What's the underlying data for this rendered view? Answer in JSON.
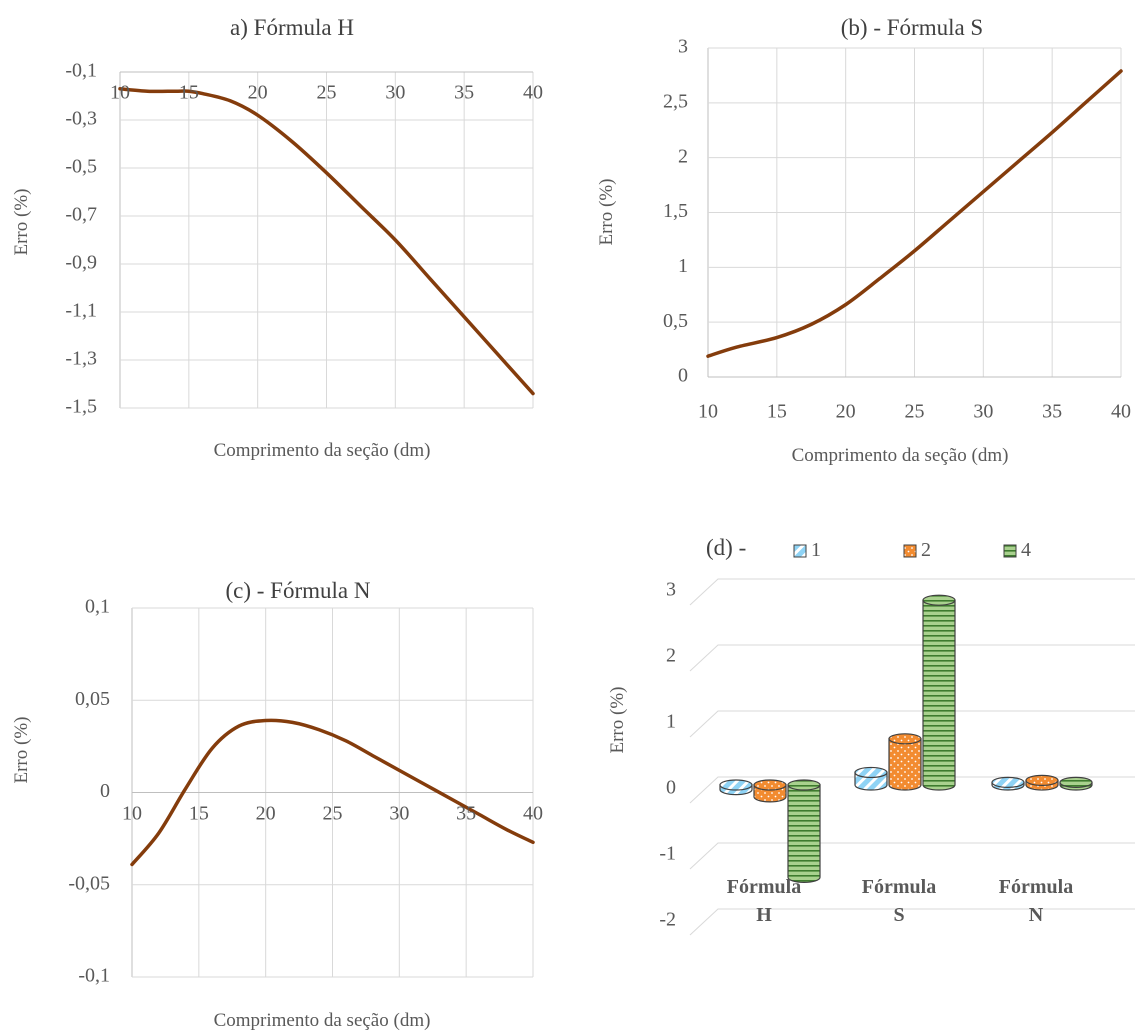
{
  "chart_data": [
    {
      "id": "a",
      "type": "line",
      "title": "a) Fórmula  H",
      "xlabel": "Comprimento  da seção (dm)",
      "ylabel": "Erro  (%)",
      "xlim": [
        10,
        40
      ],
      "ylim": [
        -1.5,
        -0.1
      ],
      "xticks": [
        "10",
        "15",
        "20",
        "25",
        "30",
        "35",
        "40"
      ],
      "yticks": [
        "-0,1",
        "-0,3",
        "-0,5",
        "-0,7",
        "-0,9",
        "-1,1",
        "-1,3",
        "-1,5"
      ],
      "x_axis_at_top": true,
      "grid": true,
      "line_color": "#843c0c",
      "series": [
        {
          "x": [
            10,
            12,
            14,
            15,
            16,
            18,
            20,
            22.5,
            25,
            27.5,
            30,
            32.5,
            35,
            37.5,
            40
          ],
          "y": [
            -0.17,
            -0.18,
            -0.18,
            -0.18,
            -0.19,
            -0.22,
            -0.28,
            -0.39,
            -0.52,
            -0.66,
            -0.8,
            -0.96,
            -1.12,
            -1.28,
            -1.44
          ]
        }
      ]
    },
    {
      "id": "b",
      "type": "line",
      "title": "(b) - Fórmula  S",
      "xlabel": "Comprimento  da seção (dm)",
      "ylabel": "Erro  (%)",
      "xlim": [
        10,
        40
      ],
      "ylim": [
        0,
        3
      ],
      "xticks": [
        "10",
        "15",
        "20",
        "25",
        "30",
        "35",
        "40"
      ],
      "yticks": [
        "0",
        "0,5",
        "1",
        "1,5",
        "2",
        "2,5",
        "3"
      ],
      "x_axis_at_top": false,
      "grid": true,
      "line_color": "#843c0c",
      "series": [
        {
          "x": [
            10,
            12,
            15,
            17.5,
            20,
            22.5,
            25,
            27.5,
            30,
            32.5,
            35,
            37.5,
            40
          ],
          "y": [
            0.19,
            0.27,
            0.36,
            0.48,
            0.66,
            0.9,
            1.15,
            1.42,
            1.69,
            1.96,
            2.23,
            2.51,
            2.79
          ]
        }
      ]
    },
    {
      "id": "c",
      "type": "line",
      "title": "(c) - Fórmula  N",
      "xlabel": "Comprimento  da seção (dm)",
      "ylabel": "Erro  (%)",
      "xlim": [
        10,
        40
      ],
      "ylim": [
        -0.1,
        0.1
      ],
      "xticks": [
        "10",
        "15",
        "20",
        "25",
        "30",
        "35",
        "40"
      ],
      "yticks": [
        "0,1",
        "0,05",
        "0",
        "-0,05",
        "-0,1"
      ],
      "x_axis_at_top": false,
      "x_tick_labels_at_zero": true,
      "grid": true,
      "line_color": "#843c0c",
      "series": [
        {
          "x": [
            10,
            12,
            14,
            16,
            18,
            20,
            22,
            24,
            26,
            28,
            30,
            32,
            34,
            36,
            38,
            40
          ],
          "y": [
            -0.039,
            -0.022,
            0.002,
            0.024,
            0.036,
            0.039,
            0.038,
            0.034,
            0.028,
            0.02,
            0.012,
            0.004,
            -0.004,
            -0.012,
            -0.02,
            -0.027
          ]
        }
      ]
    },
    {
      "id": "d",
      "type": "bar",
      "title": "(d) -",
      "ylabel": "Erro  (%)",
      "ylim": [
        -2,
        3
      ],
      "yticks": [
        "3",
        "2",
        "1",
        "0",
        "-1",
        "-2"
      ],
      "categories": [
        "Fórmula H",
        "Fórmula S",
        "Fórmula N"
      ],
      "category_lines": [
        [
          "Fórmula",
          "H"
        ],
        [
          "Fórmula",
          "S"
        ],
        [
          "Fórmula",
          "N"
        ]
      ],
      "legend_position": "top",
      "series": [
        {
          "name": "1",
          "color": "#8fd3f5",
          "values": [
            -0.07,
            0.19,
            0.04
          ]
        },
        {
          "name": "2",
          "color": "#f28b30",
          "values": [
            -0.18,
            0.7,
            0.07
          ]
        },
        {
          "name": "4",
          "color": "#a9d18e",
          "values": [
            -1.4,
            2.8,
            0.04
          ]
        }
      ]
    }
  ]
}
